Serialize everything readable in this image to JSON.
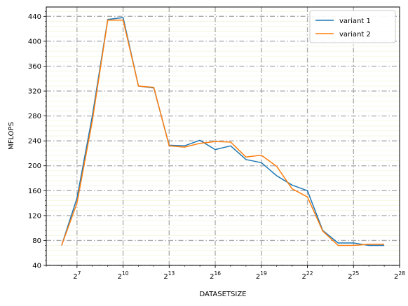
{
  "chart_data": {
    "type": "line",
    "xlabel": "DATASETSIZE",
    "ylabel": "MFLOPS",
    "x_scale": "log2",
    "x_ticks": [
      {
        "exp": 7,
        "base": "2",
        "sup": "7"
      },
      {
        "exp": 10,
        "base": "2",
        "sup": "10"
      },
      {
        "exp": 13,
        "base": "2",
        "sup": "13"
      },
      {
        "exp": 16,
        "base": "2",
        "sup": "16"
      },
      {
        "exp": 19,
        "base": "2",
        "sup": "19"
      },
      {
        "exp": 22,
        "base": "2",
        "sup": "22"
      },
      {
        "exp": 25,
        "base": "2",
        "sup": "25"
      },
      {
        "exp": 28,
        "base": "2",
        "sup": "28"
      }
    ],
    "y_ticks": [
      "40",
      "80",
      "120",
      "160",
      "200",
      "240",
      "280",
      "320",
      "360",
      "400",
      "440"
    ],
    "ylim": [
      40,
      455
    ],
    "xlim_exp": [
      5.0,
      28.0
    ],
    "grid": true,
    "legend_position": "top-right",
    "series": [
      {
        "name": "variant 1",
        "color": "#1f77b4",
        "x_exp": [
          6,
          7,
          8,
          9,
          10,
          11,
          12,
          13,
          14,
          15,
          16,
          17,
          18,
          19,
          20,
          21,
          22,
          23,
          24,
          25,
          26,
          27
        ],
        "values": [
          72,
          148,
          280,
          435,
          438,
          328,
          325,
          233,
          232,
          241,
          226,
          232,
          210,
          205,
          184,
          169,
          160,
          96,
          76,
          76,
          72,
          72
        ]
      },
      {
        "name": "variant 2",
        "color": "#ff7f0e",
        "x_exp": [
          6,
          7,
          8,
          9,
          10,
          11,
          12,
          13,
          14,
          15,
          16,
          17,
          18,
          19,
          20,
          21,
          22,
          23,
          24,
          25,
          26,
          27
        ],
        "values": [
          72,
          140,
          272,
          434,
          434,
          328,
          326,
          232,
          230,
          236,
          239,
          238,
          214,
          217,
          199,
          163,
          150,
          95,
          72,
          72,
          74,
          74
        ]
      }
    ]
  }
}
